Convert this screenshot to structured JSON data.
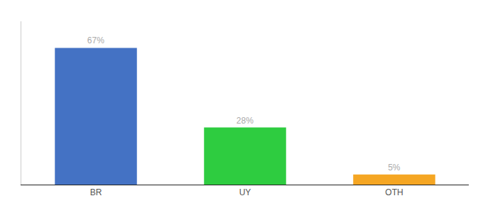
{
  "chart_data": {
    "type": "bar",
    "categories": [
      "BR",
      "UY",
      "OTH"
    ],
    "values": [
      67,
      28,
      5
    ],
    "value_labels": [
      "67%",
      "28%",
      "5%"
    ],
    "colors": [
      "#4472c4",
      "#2ecc40",
      "#f5a623"
    ],
    "ylim": [
      0,
      80
    ],
    "data_labels": true,
    "tick_labels": "x",
    "grid": false
  }
}
